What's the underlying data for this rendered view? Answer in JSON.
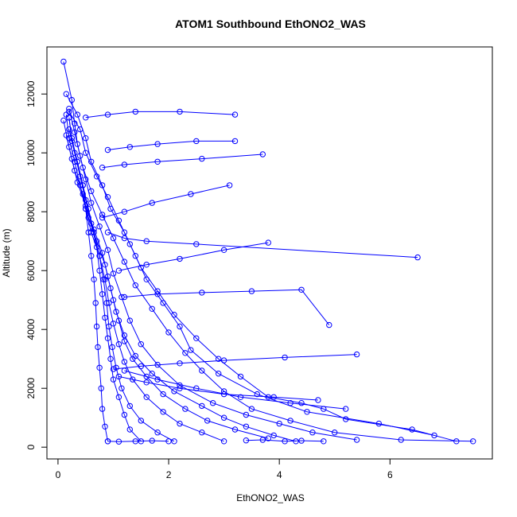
{
  "chart_data": {
    "type": "line",
    "title": "ATOM1 Southbound EthONO2_WAS",
    "xlabel": "EthONO2_WAS",
    "ylabel": "Altitude (m)",
    "xlim": [
      -0.2,
      7.85
    ],
    "ylim": [
      -400,
      13600
    ],
    "xticks": [
      0,
      2,
      4,
      6
    ],
    "yticks": [
      0,
      2000,
      4000,
      6000,
      8000,
      10000,
      12000
    ],
    "color": "#0000ff",
    "grid": false,
    "legend": "none",
    "series": [
      {
        "points": [
          [
            7.5,
            200
          ],
          [
            6.2,
            250
          ],
          [
            5.0,
            500
          ],
          [
            4.2,
            900
          ],
          [
            3.5,
            1300
          ],
          [
            3.0,
            1900
          ],
          [
            2.6,
            2600
          ],
          [
            2.3,
            3200
          ],
          [
            2.0,
            3900
          ],
          [
            1.7,
            4700
          ],
          [
            1.4,
            5500
          ],
          [
            1.2,
            6300
          ],
          [
            1.0,
            7100
          ],
          [
            0.8,
            7900
          ],
          [
            0.6,
            8700
          ],
          [
            0.45,
            9500
          ],
          [
            0.35,
            10300
          ],
          [
            0.3,
            11000
          ],
          [
            0.25,
            11800
          ],
          [
            0.1,
            13100
          ]
        ]
      },
      {
        "points": [
          [
            7.2,
            200
          ],
          [
            6.4,
            600
          ],
          [
            5.2,
            950
          ],
          [
            4.8,
            1300
          ],
          [
            4.4,
            1500
          ],
          [
            3.8,
            1700
          ],
          [
            3.3,
            2400
          ],
          [
            2.9,
            3000
          ],
          [
            2.5,
            3700
          ],
          [
            2.1,
            4500
          ],
          [
            1.8,
            5300
          ],
          [
            1.5,
            6100
          ],
          [
            1.3,
            6900
          ],
          [
            1.1,
            7700
          ],
          [
            0.9,
            8500
          ],
          [
            0.7,
            9200
          ],
          [
            0.5,
            10000
          ],
          [
            0.4,
            10800
          ],
          [
            0.2,
            11400
          ]
        ]
      },
      {
        "points": [
          [
            6.8,
            400
          ],
          [
            5.8,
            800
          ],
          [
            4.5,
            1200
          ],
          [
            3.6,
            1800
          ],
          [
            2.9,
            2500
          ],
          [
            2.4,
            3300
          ],
          [
            2.2,
            4100
          ],
          [
            1.9,
            4900
          ],
          [
            1.6,
            5700
          ],
          [
            1.4,
            6500
          ],
          [
            1.2,
            7300
          ],
          [
            0.95,
            8100
          ],
          [
            0.8,
            8900
          ],
          [
            0.6,
            9700
          ],
          [
            0.5,
            10500
          ],
          [
            0.35,
            11300
          ],
          [
            0.15,
            12000
          ]
        ]
      },
      {
        "points": [
          [
            5.4,
            250
          ],
          [
            4.6,
            500
          ],
          [
            4.0,
            800
          ],
          [
            3.4,
            1100
          ],
          [
            2.8,
            1500
          ],
          [
            2.2,
            2100
          ],
          [
            1.8,
            2800
          ],
          [
            1.5,
            3500
          ],
          [
            1.3,
            4300
          ],
          [
            1.15,
            5100
          ],
          [
            1.0,
            5900
          ],
          [
            0.9,
            6700
          ],
          [
            0.75,
            7500
          ],
          [
            0.6,
            8300
          ],
          [
            0.5,
            9100
          ],
          [
            0.4,
            9900
          ],
          [
            0.3,
            10700
          ],
          [
            0.2,
            11500
          ]
        ]
      },
      {
        "points": [
          [
            4.3,
            200
          ],
          [
            3.9,
            400
          ],
          [
            3.4,
            700
          ],
          [
            3.0,
            1000
          ],
          [
            2.6,
            1400
          ],
          [
            2.1,
            1900
          ],
          [
            1.7,
            2500
          ],
          [
            1.4,
            3100
          ],
          [
            1.2,
            3800
          ],
          [
            1.05,
            4600
          ],
          [
            0.95,
            5400
          ],
          [
            0.85,
            6200
          ],
          [
            0.7,
            7000
          ],
          [
            0.55,
            7800
          ],
          [
            0.45,
            8600
          ],
          [
            0.3,
            9400
          ],
          [
            0.2,
            10200
          ],
          [
            0.1,
            11100
          ]
        ]
      },
      {
        "points": [
          [
            3.8,
            300
          ],
          [
            3.2,
            600
          ],
          [
            2.7,
            900
          ],
          [
            2.3,
            1300
          ],
          [
            1.9,
            1800
          ],
          [
            1.6,
            2400
          ],
          [
            1.35,
            3000
          ],
          [
            1.2,
            3600
          ],
          [
            1.1,
            4300
          ],
          [
            1.0,
            5000
          ],
          [
            0.9,
            5800
          ],
          [
            0.8,
            6600
          ],
          [
            0.65,
            7400
          ],
          [
            0.5,
            8200
          ],
          [
            0.35,
            9000
          ],
          [
            0.25,
            9800
          ],
          [
            0.15,
            10600
          ]
        ]
      },
      {
        "points": [
          [
            3.0,
            200
          ],
          [
            2.6,
            500
          ],
          [
            2.2,
            800
          ],
          [
            1.9,
            1200
          ],
          [
            1.6,
            1700
          ],
          [
            1.35,
            2300
          ],
          [
            1.2,
            2900
          ],
          [
            1.1,
            3500
          ],
          [
            1.0,
            4200
          ],
          [
            0.92,
            4900
          ],
          [
            0.85,
            5700
          ],
          [
            0.75,
            6500
          ],
          [
            0.6,
            7300
          ],
          [
            0.5,
            8100
          ],
          [
            0.4,
            8900
          ],
          [
            0.3,
            9700
          ],
          [
            0.2,
            10500
          ],
          [
            0.15,
            11300
          ]
        ]
      },
      {
        "points": [
          [
            2.1,
            200
          ],
          [
            1.8,
            500
          ],
          [
            1.5,
            900
          ],
          [
            1.3,
            1400
          ],
          [
            1.15,
            2000
          ],
          [
            1.05,
            2700
          ],
          [
            0.98,
            3400
          ],
          [
            0.92,
            4100
          ],
          [
            0.88,
            4900
          ],
          [
            0.82,
            5700
          ],
          [
            0.75,
            6500
          ],
          [
            0.65,
            7300
          ],
          [
            0.55,
            8100
          ],
          [
            0.45,
            8900
          ],
          [
            0.35,
            9700
          ],
          [
            0.25,
            10400
          ],
          [
            0.2,
            11200
          ]
        ]
      },
      {
        "points": [
          [
            1.5,
            200
          ],
          [
            1.3,
            600
          ],
          [
            1.2,
            1100
          ],
          [
            1.1,
            1700
          ],
          [
            1.0,
            2300
          ],
          [
            0.95,
            3000
          ],
          [
            0.9,
            3700
          ],
          [
            0.85,
            4400
          ],
          [
            0.8,
            5200
          ],
          [
            0.75,
            6000
          ],
          [
            0.7,
            6800
          ],
          [
            0.6,
            7600
          ],
          [
            0.5,
            8400
          ],
          [
            0.4,
            9200
          ],
          [
            0.3,
            10000
          ],
          [
            0.2,
            10800
          ]
        ]
      },
      {
        "points": [
          [
            0.9,
            200
          ],
          [
            0.85,
            700
          ],
          [
            0.8,
            1300
          ],
          [
            0.78,
            2000
          ],
          [
            0.75,
            2700
          ],
          [
            0.72,
            3400
          ],
          [
            0.7,
            4100
          ],
          [
            0.68,
            4900
          ],
          [
            0.65,
            5700
          ],
          [
            0.6,
            6500
          ],
          [
            0.55,
            7300
          ],
          [
            0.5,
            8100
          ],
          [
            0.45,
            8900
          ],
          [
            0.35,
            9700
          ],
          [
            0.25,
            10500
          ],
          [
            0.2,
            11200
          ]
        ]
      },
      {
        "points": [
          [
            6.5,
            6450
          ],
          [
            2.5,
            6900
          ],
          [
            1.6,
            7000
          ],
          [
            1.2,
            7100
          ],
          [
            0.9,
            7300
          ]
        ]
      },
      {
        "points": [
          [
            3.2,
            10400
          ],
          [
            2.5,
            10400
          ],
          [
            1.8,
            10300
          ],
          [
            1.3,
            10200
          ],
          [
            0.9,
            10100
          ]
        ]
      },
      {
        "points": [
          [
            3.7,
            9950
          ],
          [
            2.6,
            9800
          ],
          [
            1.8,
            9700
          ],
          [
            1.2,
            9600
          ],
          [
            0.8,
            9500
          ]
        ]
      },
      {
        "points": [
          [
            4.9,
            4150
          ],
          [
            4.4,
            5350
          ],
          [
            3.5,
            5300
          ],
          [
            2.6,
            5250
          ],
          [
            1.8,
            5200
          ],
          [
            1.2,
            5100
          ]
        ]
      },
      {
        "points": [
          [
            5.4,
            3150
          ],
          [
            4.1,
            3050
          ],
          [
            3.0,
            2950
          ],
          [
            2.2,
            2850
          ],
          [
            1.5,
            2750
          ],
          [
            1.0,
            2650
          ]
        ]
      },
      {
        "points": [
          [
            3.2,
            11300
          ],
          [
            2.2,
            11400
          ],
          [
            1.4,
            11400
          ],
          [
            0.9,
            11300
          ],
          [
            0.5,
            11200
          ]
        ]
      },
      {
        "points": [
          [
            4.7,
            1600
          ],
          [
            3.9,
            1700
          ],
          [
            3.0,
            1800
          ],
          [
            2.2,
            2000
          ],
          [
            1.6,
            2200
          ],
          [
            1.1,
            2400
          ]
        ]
      },
      {
        "points": [
          [
            3.8,
            6950
          ],
          [
            3.0,
            6700
          ],
          [
            2.2,
            6400
          ],
          [
            1.6,
            6200
          ],
          [
            1.1,
            6000
          ]
        ]
      },
      {
        "points": [
          [
            3.1,
            8900
          ],
          [
            2.4,
            8600
          ],
          [
            1.7,
            8300
          ],
          [
            1.2,
            8000
          ],
          [
            0.8,
            7800
          ]
        ]
      },
      {
        "points": [
          [
            5.2,
            1300
          ],
          [
            4.2,
            1500
          ],
          [
            3.3,
            1700
          ],
          [
            2.5,
            2000
          ],
          [
            1.8,
            2300
          ],
          [
            1.2,
            2600
          ]
        ]
      },
      {
        "points": [
          [
            2.0,
            200
          ],
          [
            1.7,
            220
          ],
          [
            1.4,
            200
          ],
          [
            1.1,
            190
          ],
          [
            0.9,
            200
          ]
        ]
      },
      {
        "points": [
          [
            4.8,
            200
          ],
          [
            4.4,
            220
          ],
          [
            4.1,
            200
          ],
          [
            3.7,
            250
          ],
          [
            3.4,
            230
          ]
        ]
      }
    ]
  }
}
